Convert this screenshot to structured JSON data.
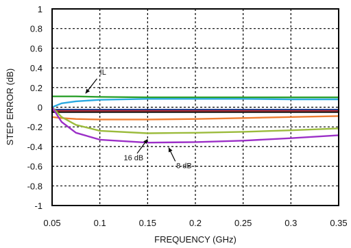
{
  "chart_data": {
    "type": "line",
    "xlabel": "FREQUENCY (GHz)",
    "ylabel": "STEP ERROR (dB)",
    "xlim": [
      0.05,
      0.35
    ],
    "ylim": [
      -1,
      1
    ],
    "x_ticks": [
      "0.05",
      "0.1",
      "0.15",
      "0.2",
      "0.25",
      "0.3",
      "0.35"
    ],
    "y_ticks": [
      "1",
      "0.8",
      "0.6",
      "0.4",
      "0.2",
      "0",
      "-0.2",
      "-0.4",
      "-0.6",
      "-0.8",
      "-1"
    ],
    "grid": true,
    "x": [
      0.05,
      0.06,
      0.075,
      0.1,
      0.15,
      0.2,
      0.25,
      0.3,
      0.35
    ],
    "series": [
      {
        "name": "IL",
        "color": "#2ca02c",
        "values": [
          0.11,
          0.11,
          0.11,
          0.105,
          0.1,
          0.1,
          0.1,
          0.1,
          0.1
        ]
      },
      {
        "color": "#29a8e0",
        "values": [
          0.0,
          0.04,
          0.06,
          0.075,
          0.085,
          0.085,
          0.085,
          0.08,
          0.08
        ]
      },
      {
        "color": "#1f3a8a",
        "values": [
          -0.025,
          -0.025,
          -0.025,
          -0.025,
          -0.025,
          -0.025,
          -0.025,
          -0.025,
          -0.025
        ]
      },
      {
        "color": "#d62728",
        "values": [
          -0.04,
          -0.04,
          -0.04,
          -0.04,
          -0.04,
          -0.04,
          -0.04,
          -0.04,
          -0.04
        ]
      },
      {
        "color": "#222222",
        "values": [
          -0.05,
          -0.05,
          -0.05,
          -0.05,
          -0.05,
          -0.05,
          -0.05,
          -0.05,
          -0.05
        ]
      },
      {
        "color": "#ee7d31",
        "values": [
          -0.1,
          -0.11,
          -0.12,
          -0.125,
          -0.125,
          -0.12,
          -0.11,
          -0.1,
          -0.09
        ]
      },
      {
        "name": "16 dB",
        "color": "#9bbb3c",
        "values": [
          0.0,
          -0.1,
          -0.18,
          -0.24,
          -0.265,
          -0.26,
          -0.25,
          -0.235,
          -0.215
        ]
      },
      {
        "name": "8 dB",
        "color": "#9b2fc7",
        "values": [
          0.0,
          -0.15,
          -0.26,
          -0.33,
          -0.36,
          -0.355,
          -0.34,
          -0.315,
          -0.285
        ]
      }
    ],
    "annotations": [
      {
        "text": "IL",
        "x": 0.1,
        "y": 0.33
      },
      {
        "text": "16 dB",
        "x": 0.125,
        "y": -0.54
      },
      {
        "text": "8 dB",
        "x": 0.18,
        "y": -0.62
      }
    ]
  }
}
